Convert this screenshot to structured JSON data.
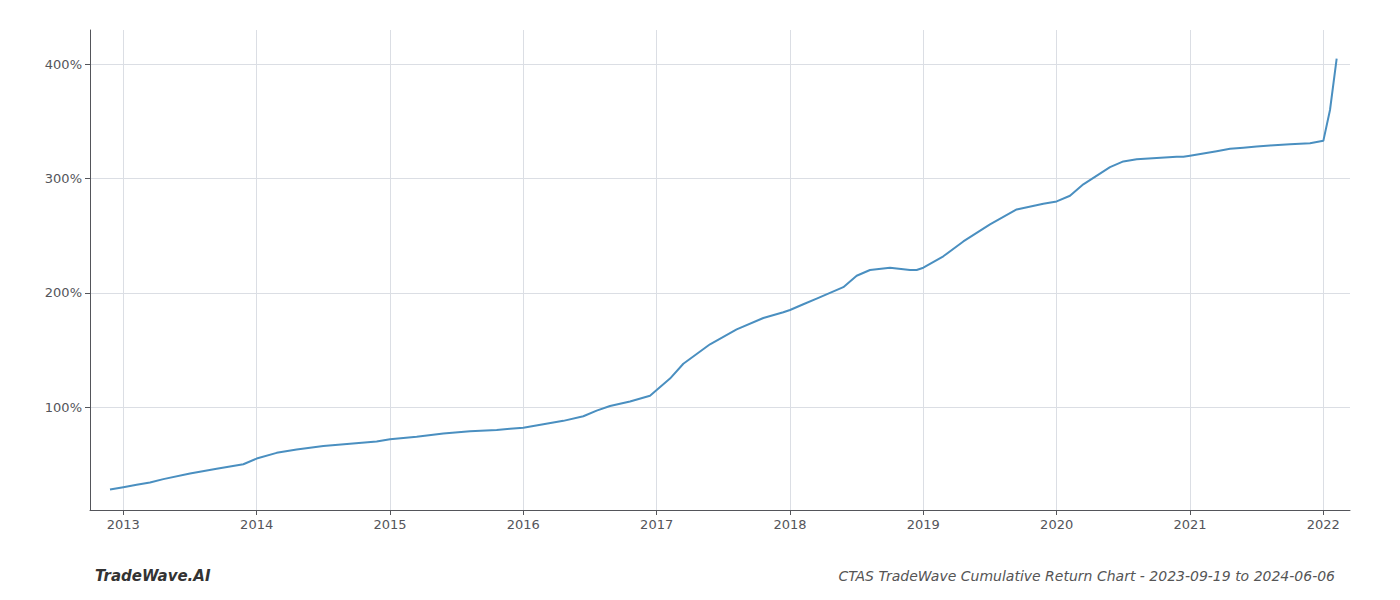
{
  "chart_data": {
    "type": "line",
    "title": "CTAS TradeWave Cumulative Return Chart - 2023-09-19 to 2024-06-06",
    "annotations": [
      "TradeWave.AI"
    ],
    "x": [
      2012.9,
      2013.0,
      2013.1,
      2013.2,
      2013.3,
      2013.5,
      2013.7,
      2013.9,
      2014.0,
      2014.15,
      2014.3,
      2014.5,
      2014.7,
      2014.9,
      2015.0,
      2015.2,
      2015.4,
      2015.6,
      2015.8,
      2015.9,
      2016.0,
      2016.15,
      2016.3,
      2016.45,
      2016.55,
      2016.65,
      2016.8,
      2016.95,
      2017.0,
      2017.1,
      2017.2,
      2017.4,
      2017.6,
      2017.8,
      2017.95,
      2018.0,
      2018.1,
      2018.2,
      2018.4,
      2018.5,
      2018.6,
      2018.75,
      2018.9,
      2018.95,
      2019.0,
      2019.15,
      2019.3,
      2019.5,
      2019.7,
      2019.9,
      2020.0,
      2020.1,
      2020.2,
      2020.4,
      2020.5,
      2020.6,
      2020.75,
      2020.9,
      2020.95,
      2021.0,
      2021.1,
      2021.2,
      2021.3,
      2021.4,
      2021.5,
      2021.6,
      2021.75,
      2021.9,
      2021.95,
      2022.0,
      2022.05,
      2022.1
    ],
    "values": [
      28,
      30,
      32,
      34,
      37,
      42,
      46,
      50,
      55,
      60,
      63,
      66,
      68,
      70,
      72,
      74,
      77,
      79,
      80,
      81,
      82,
      85,
      88,
      92,
      97,
      101,
      105,
      110,
      115,
      125,
      138,
      155,
      168,
      178,
      183,
      185,
      190,
      195,
      205,
      215,
      220,
      222,
      220,
      220,
      222,
      232,
      245,
      260,
      273,
      278,
      280,
      285,
      295,
      310,
      315,
      317,
      318,
      319,
      319,
      320,
      322,
      324,
      326,
      327,
      328,
      329,
      330,
      331,
      332,
      333,
      360,
      405
    ],
    "color": "#4a8fc0",
    "xlim": [
      2012.75,
      2022.2
    ],
    "ylim": [
      10,
      430
    ],
    "xticks": [
      2013,
      2014,
      2015,
      2016,
      2017,
      2018,
      2019,
      2020,
      2021,
      2022
    ],
    "yticks": [
      {
        "value": 100,
        "label": "100%"
      },
      {
        "value": 200,
        "label": "200%"
      },
      {
        "value": 300,
        "label": "300%"
      },
      {
        "value": 400,
        "label": "400%"
      }
    ],
    "grid": true
  }
}
